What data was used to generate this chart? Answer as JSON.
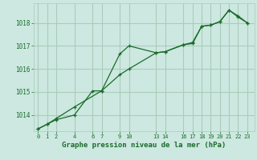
{
  "background_color": "#cce8e0",
  "grid_color": "#aaccbb",
  "line_color": "#1a6b2a",
  "title": "Graphe pression niveau de la mer (hPa)",
  "title_color": "#1a6b2a",
  "xticks": [
    0,
    1,
    2,
    4,
    6,
    7,
    9,
    10,
    13,
    14,
    16,
    17,
    18,
    19,
    20,
    21,
    22,
    23
  ],
  "yticks": [
    1014,
    1015,
    1016,
    1017,
    1018
  ],
  "ylim": [
    1013.3,
    1018.85
  ],
  "xlim": [
    -0.5,
    23.8
  ],
  "series1_x": [
    0,
    1,
    2,
    4,
    6,
    7,
    9,
    10,
    13,
    14,
    16,
    17,
    18,
    19,
    20,
    21,
    22,
    23
  ],
  "series1_y": [
    1013.4,
    1013.6,
    1013.8,
    1014.0,
    1015.05,
    1015.05,
    1016.65,
    1017.0,
    1016.7,
    1016.75,
    1017.05,
    1017.1,
    1017.85,
    1017.9,
    1018.05,
    1018.55,
    1018.3,
    1018.0
  ],
  "series2_x": [
    0,
    1,
    2,
    4,
    7,
    9,
    10,
    13,
    14,
    16,
    17,
    18,
    19,
    20,
    21,
    22,
    23
  ],
  "series2_y": [
    1013.4,
    1013.6,
    1013.85,
    1014.35,
    1015.05,
    1015.75,
    1016.0,
    1016.7,
    1016.75,
    1017.05,
    1017.15,
    1017.85,
    1017.9,
    1018.05,
    1018.55,
    1018.25,
    1018.0
  ]
}
